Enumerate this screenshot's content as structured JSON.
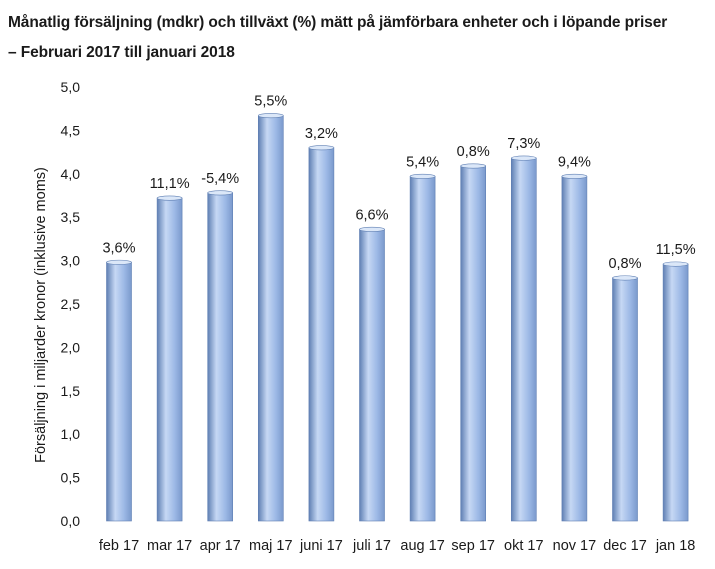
{
  "chart_data": {
    "type": "bar",
    "title": "Månatlig försäljning (mdkr) och tillväxt (%) mätt på jämförbara enheter och i löpande priser",
    "subtitle": "– Februari 2017 till januari 2018",
    "xlabel": "",
    "ylabel": "Försäljning i miljarder kronor (inklusive moms)",
    "ylim": [
      0,
      5
    ],
    "yticks": [
      "0,0",
      "0,5",
      "1,0",
      "1,5",
      "2,0",
      "2,5",
      "3,0",
      "3,5",
      "4,0",
      "4,5",
      "5,0"
    ],
    "ytick_values": [
      0,
      0.5,
      1,
      1.5,
      2,
      2.5,
      3,
      3.5,
      4,
      4.5,
      5
    ],
    "grid": false,
    "categories": [
      "feb 17",
      "mar 17",
      "apr 17",
      "maj 17",
      "juni 17",
      "juli 17",
      "aug 17",
      "sep 17",
      "okt 17",
      "nov 17",
      "dec 17",
      "jan 18"
    ],
    "values": [
      2.98,
      3.72,
      3.78,
      4.67,
      4.3,
      3.36,
      3.97,
      4.09,
      4.18,
      3.97,
      2.8,
      2.96
    ],
    "data_labels": [
      "3,6%",
      "11,1%",
      "-5,4%",
      "5,5%",
      "3,2%",
      "6,6%",
      "5,4%",
      "0,8%",
      "7,3%",
      "9,4%",
      "0,8%",
      "11,5%"
    ],
    "bar_color": "#9db9e6",
    "bar_edge_color": "#5f7fb3"
  }
}
